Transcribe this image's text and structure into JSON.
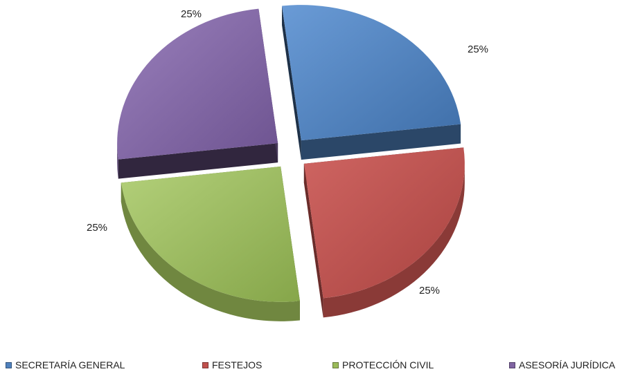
{
  "chart_data": {
    "type": "pie",
    "title": "",
    "three_d": true,
    "exploded": true,
    "slices": [
      {
        "name": "SECRETARÍA GENERAL",
        "value": 25,
        "label": "25%",
        "color": "#4F81BD"
      },
      {
        "name": "FESTEJOS",
        "value": 25,
        "label": "25%",
        "color": "#C0504D"
      },
      {
        "name": "PROTECCIÓN CIVIL",
        "value": 25,
        "label": "25%",
        "color": "#9BBB59"
      },
      {
        "name": "ASESORÍA JURÍDICA",
        "value": 25,
        "label": "25%",
        "color": "#8064A2"
      }
    ],
    "legend_position": "bottom"
  }
}
